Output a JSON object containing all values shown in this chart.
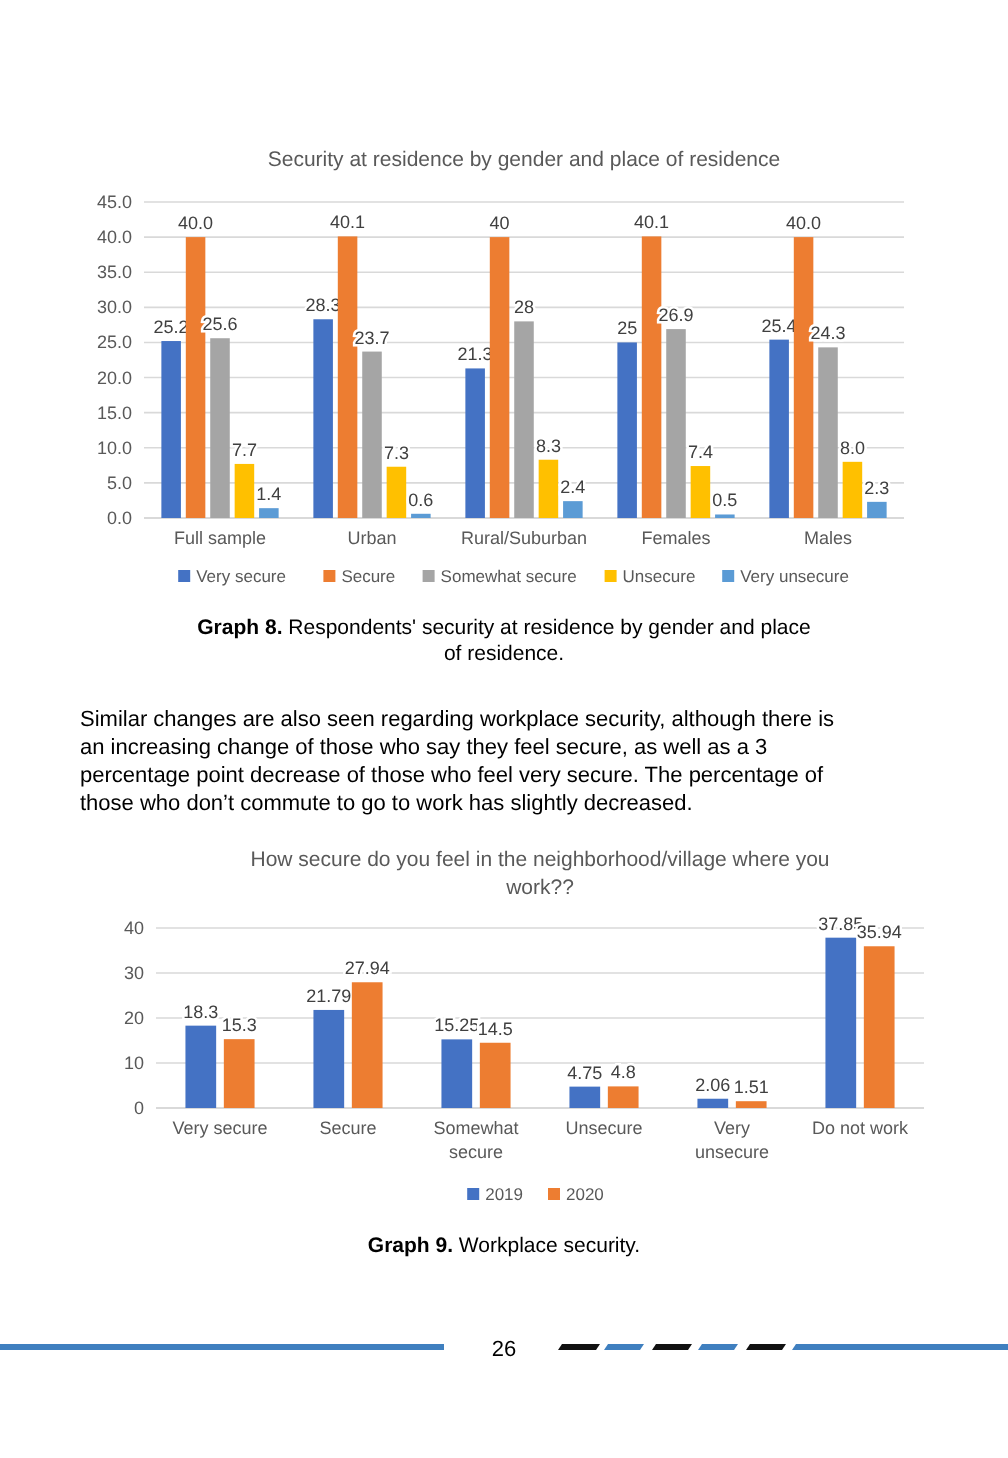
{
  "chart_data": [
    {
      "type": "bar",
      "title": "Security at residence by gender and place of residence",
      "categories": [
        "Full sample",
        "Urban",
        "Rural/Suburban",
        "Females",
        "Males"
      ],
      "series": [
        {
          "name": "Very secure",
          "color": "#4472c4",
          "values": [
            25.2,
            28.3,
            21.3,
            25,
            25.4
          ],
          "value_labels": [
            "25.2",
            "28.3",
            "21.3",
            "25",
            "25.4"
          ]
        },
        {
          "name": "Secure",
          "color": "#ed7d31",
          "values": [
            40.0,
            40.1,
            40,
            40.1,
            40.0
          ],
          "value_labels": [
            "40.0",
            "40.1",
            "40",
            "40.1",
            "40.0"
          ]
        },
        {
          "name": "Somewhat secure",
          "color": "#a5a5a5",
          "values": [
            25.6,
            23.7,
            28,
            26.9,
            24.3
          ],
          "value_labels": [
            "25.6",
            "23.7",
            "28",
            "26.9",
            "24.3"
          ]
        },
        {
          "name": "Unsecure",
          "color": "#ffc000",
          "values": [
            7.7,
            7.3,
            8.3,
            7.4,
            8.0
          ],
          "value_labels": [
            "7.7",
            "7.3",
            "8.3",
            "7.4",
            "8.0"
          ]
        },
        {
          "name": "Very unsecure",
          "color": "#5b9bd5",
          "values": [
            1.4,
            0.6,
            2.4,
            0.5,
            2.3
          ],
          "value_labels": [
            "1.4",
            "0.6",
            "2.4",
            "0.5",
            "2.3"
          ]
        }
      ],
      "ylim": [
        0,
        45
      ],
      "yticks": [
        {
          "value": 0,
          "label": "0.0"
        },
        {
          "value": 5,
          "label": "5.0"
        },
        {
          "value": 10,
          "label": "10.0"
        },
        {
          "value": 15,
          "label": "15.0"
        },
        {
          "value": 20,
          "label": "20.0"
        },
        {
          "value": 25,
          "label": "25.0"
        },
        {
          "value": 30,
          "label": "30.0"
        },
        {
          "value": 35,
          "label": "35.0"
        },
        {
          "value": 40,
          "label": "40.0"
        },
        {
          "value": 45,
          "label": "45.0"
        }
      ],
      "grid": "y",
      "legend": "bottom",
      "annotations": [
        "Graph 8. Respondents' security at residence by gender and place of residence.",
        "Similar changes are also seen regarding workplace security, although there is an increasing change of those who say they feel secure, as well as a 3 percentage point decrease of those who feel very secure. The percentage of those who don’t commute to go to work has slightly decreased."
      ]
    },
    {
      "type": "bar",
      "title": "How secure do you feel in the neighborhood/village where you work??",
      "categories": [
        "Very secure",
        "Secure",
        "Somewhat secure",
        "Unsecure",
        "Very unsecure",
        "Do not work"
      ],
      "series": [
        {
          "name": "2019",
          "color": "#4472c4",
          "values": [
            18.3,
            21.79,
            15.25,
            4.75,
            2.06,
            37.85
          ],
          "value_labels": [
            "18.3",
            "21.79",
            "15.25",
            "4.75",
            "2.06",
            "37.85"
          ]
        },
        {
          "name": "2020",
          "color": "#ed7d31",
          "values": [
            15.3,
            27.94,
            14.5,
            4.8,
            1.51,
            35.94
          ],
          "value_labels": [
            "15.3",
            "27.94",
            "14.5",
            "4.8",
            "1.51",
            "35.94"
          ]
        }
      ],
      "ylim": [
        0,
        40
      ],
      "yticks": [
        0,
        10,
        20,
        30,
        40
      ],
      "grid": "y",
      "legend": "bottom",
      "annotations": [
        "Graph 9. Workplace security.",
        "26"
      ]
    }
  ]
}
